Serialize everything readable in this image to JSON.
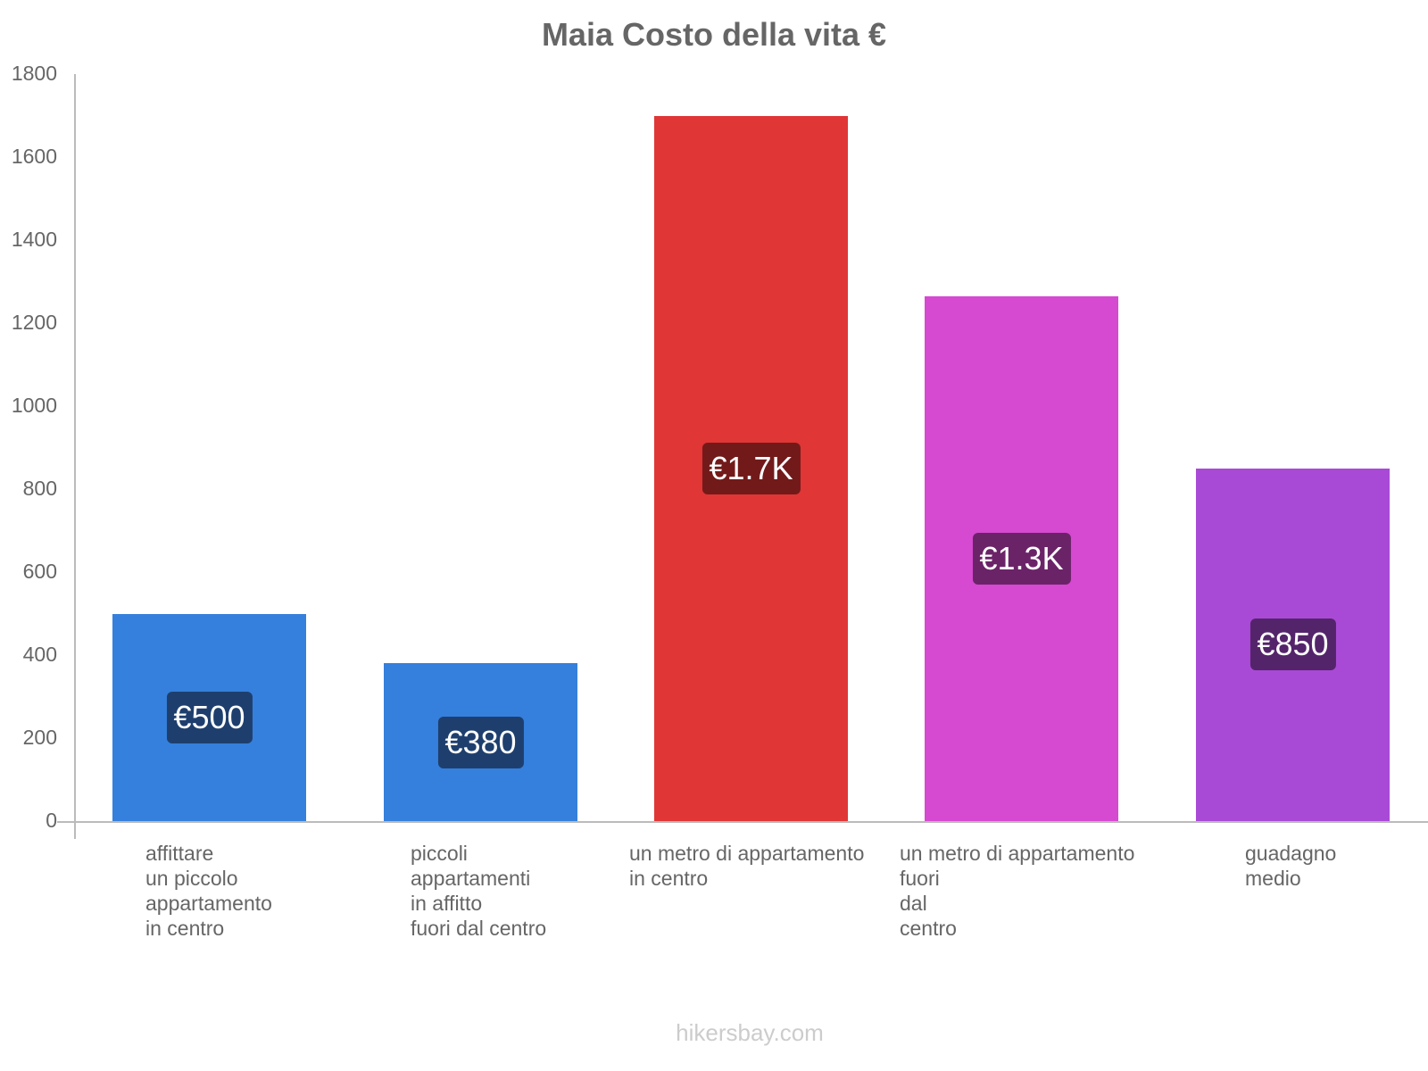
{
  "title": "Maia Costo della vita €",
  "footer": "hikersbay.com",
  "y_ticks": [
    "1800",
    "1600",
    "1400",
    "1200",
    "1000",
    "800",
    "600",
    "400",
    "200",
    "0"
  ],
  "bars": [
    {
      "label": "affittare\nun piccolo\nappartamento\nin centro",
      "value": 500,
      "badge": "€500",
      "color": "#3580dc",
      "badge_color": "#1e3f6e"
    },
    {
      "label": "piccoli\nappartamenti\nin affitto\nfuori dal centro",
      "value": 380,
      "badge": "€380",
      "color": "#3580dc",
      "badge_color": "#1e3f6e"
    },
    {
      "label": "un metro di appartamento\nin centro",
      "value": 1700,
      "badge": "€1.7K",
      "color": "#e03636",
      "badge_color": "#721a1a"
    },
    {
      "label": "un metro di appartamento\nfuori\ndal\ncentro",
      "value": 1265,
      "badge": "€1.3K",
      "color": "#d649d1",
      "badge_color": "#6b2368"
    },
    {
      "label": "guadagno\nmedio",
      "value": 850,
      "badge": "€850",
      "color": "#a94ad6",
      "badge_color": "#54246b"
    }
  ],
  "chart_data": {
    "type": "bar",
    "title": "Maia Costo della vita €",
    "categories": [
      "affittare un piccolo appartamento in centro",
      "piccoli appartamenti in affitto fuori dal centro",
      "un metro di appartamento in centro",
      "un metro di appartamento fuori dal centro",
      "guadagno medio"
    ],
    "values": [
      500,
      380,
      1700,
      1265,
      850
    ],
    "data_labels": [
      "€500",
      "€380",
      "€1.7K",
      "€1.3K",
      "€850"
    ],
    "colors": [
      "#3580dc",
      "#3580dc",
      "#e03636",
      "#d649d1",
      "#a94ad6"
    ],
    "xlabel": "",
    "ylabel": "",
    "ylim": [
      0,
      1800
    ],
    "yticks": [
      0,
      200,
      400,
      600,
      800,
      1000,
      1200,
      1400,
      1600,
      1800
    ],
    "grid": false,
    "legend": "none",
    "source": "hikersbay.com"
  }
}
